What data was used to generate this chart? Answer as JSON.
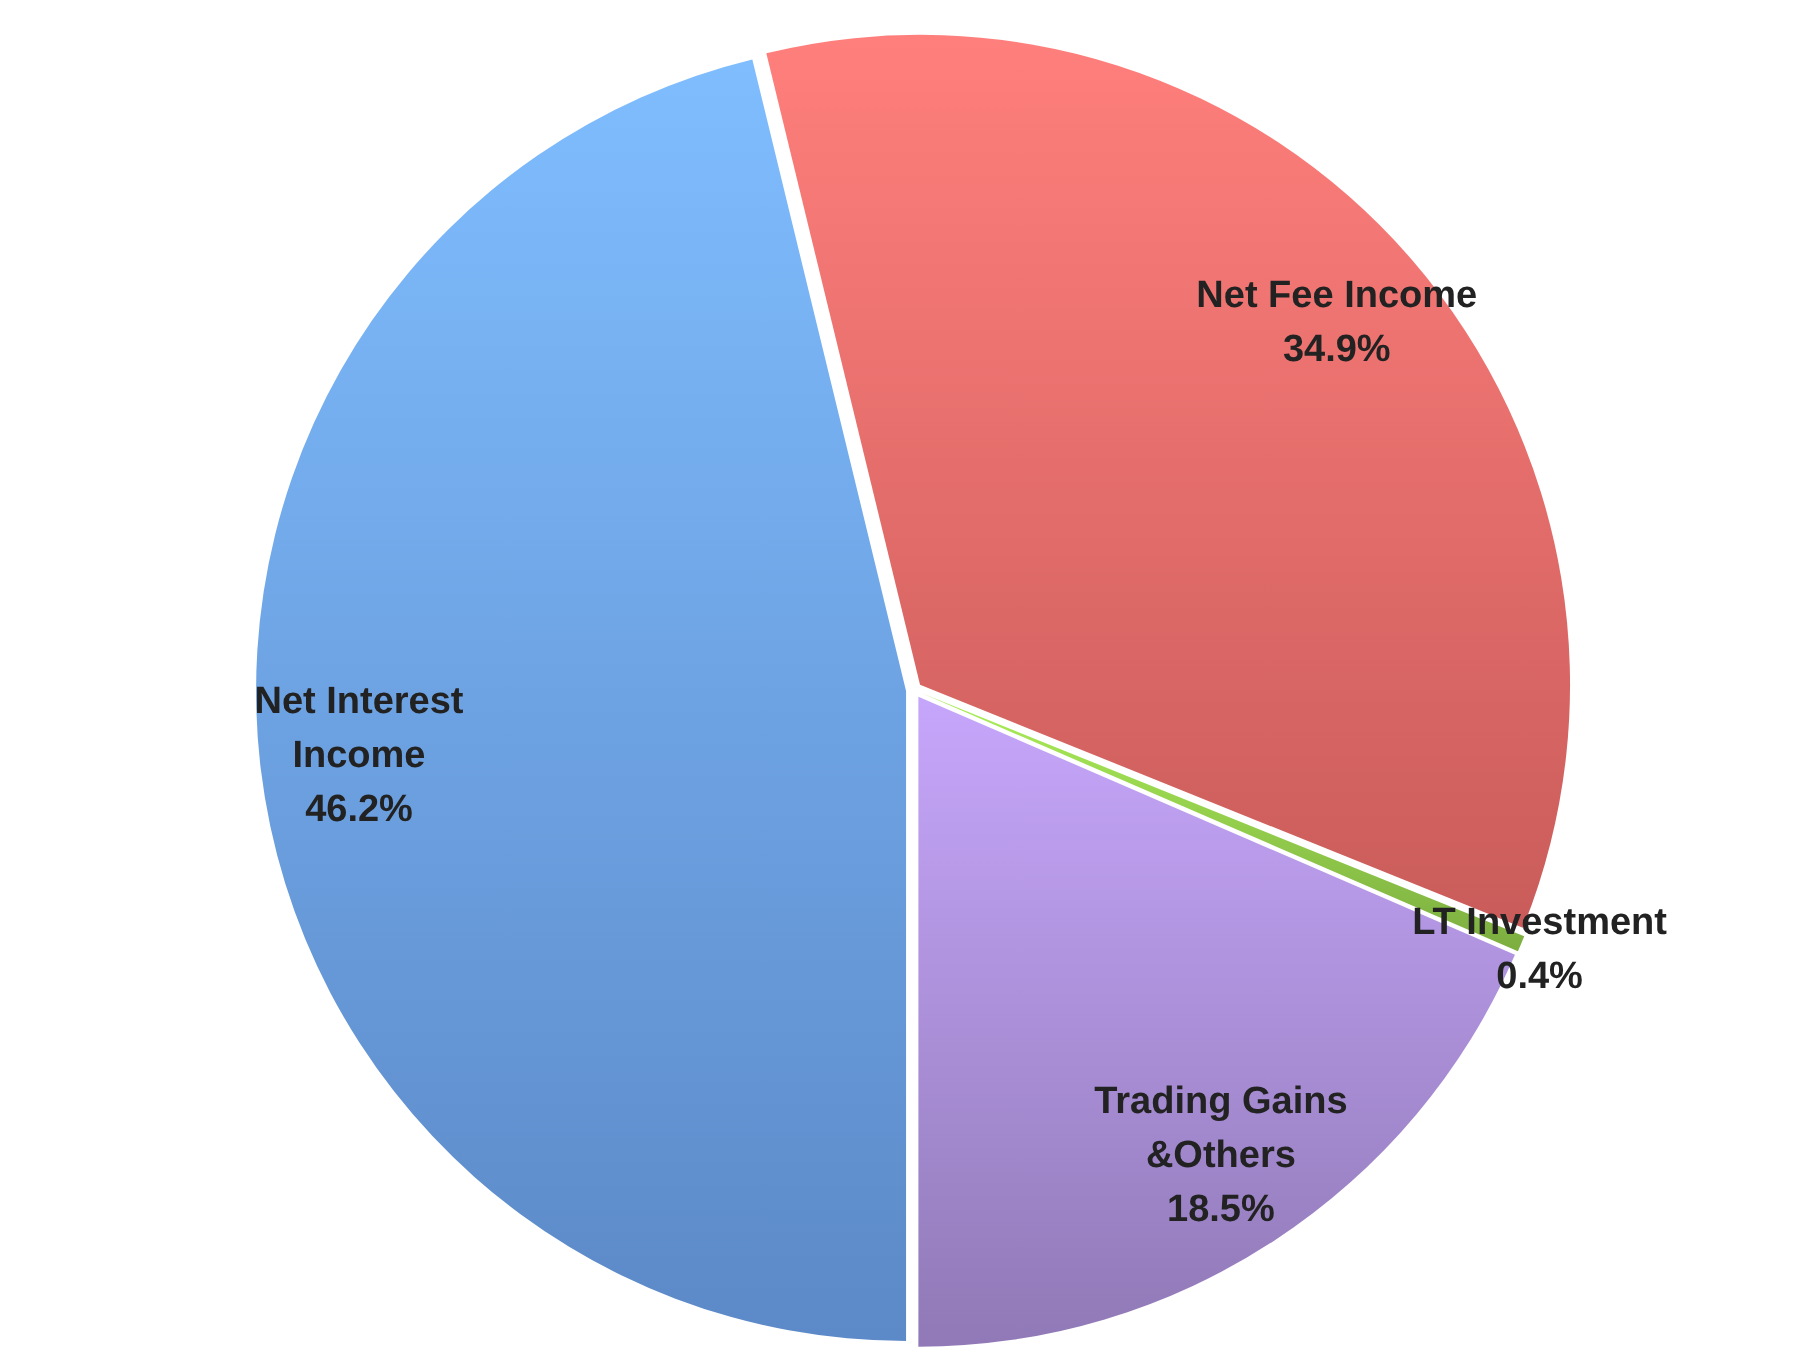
{
  "chart_data": {
    "type": "pie",
    "categories": [
      "Net Interest Income",
      "Net Fee Income",
      "LT Investment",
      "Trading Gains &Others"
    ],
    "values": [
      46.2,
      34.9,
      0.4,
      18.5
    ],
    "value_labels": [
      "46.2%",
      "34.9%",
      "0.4%",
      "18.5%"
    ],
    "colors": [
      "#6a9ee6",
      "#e86a68",
      "#8fc84a",
      "#a68bd2"
    ],
    "legend": false
  }
}
